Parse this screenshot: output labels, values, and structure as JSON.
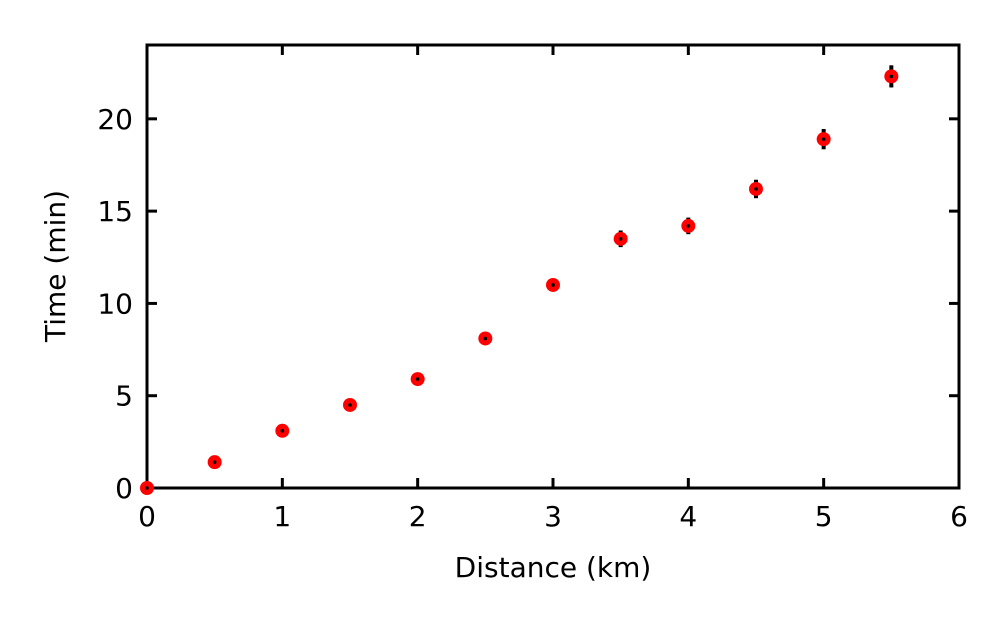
{
  "chart_data": {
    "type": "scatter",
    "title": "",
    "xlabel": "Distance (km)",
    "ylabel": "Time (min)",
    "xlim": [
      0,
      6
    ],
    "ylim": [
      0,
      24
    ],
    "xticks": [
      0,
      1,
      2,
      3,
      4,
      5,
      6
    ],
    "yticks": [
      0,
      5,
      10,
      15,
      20
    ],
    "grid": false,
    "legend": "none",
    "marker_color": "#ff0000",
    "errorbar_color": "#000000",
    "series": [
      {
        "x": [
          0,
          0.5,
          1.0,
          1.5,
          2.0,
          2.5,
          3.0,
          3.5,
          4.0,
          4.5,
          5.0,
          5.5
        ],
        "y": [
          0,
          1.4,
          3.1,
          4.5,
          5.9,
          8.1,
          11.0,
          13.5,
          14.2,
          16.2,
          18.9,
          22.3
        ],
        "yerr": [
          0,
          0.1,
          0.2,
          0.2,
          0.2,
          0.25,
          0.3,
          0.45,
          0.45,
          0.5,
          0.55,
          0.6
        ]
      }
    ]
  }
}
